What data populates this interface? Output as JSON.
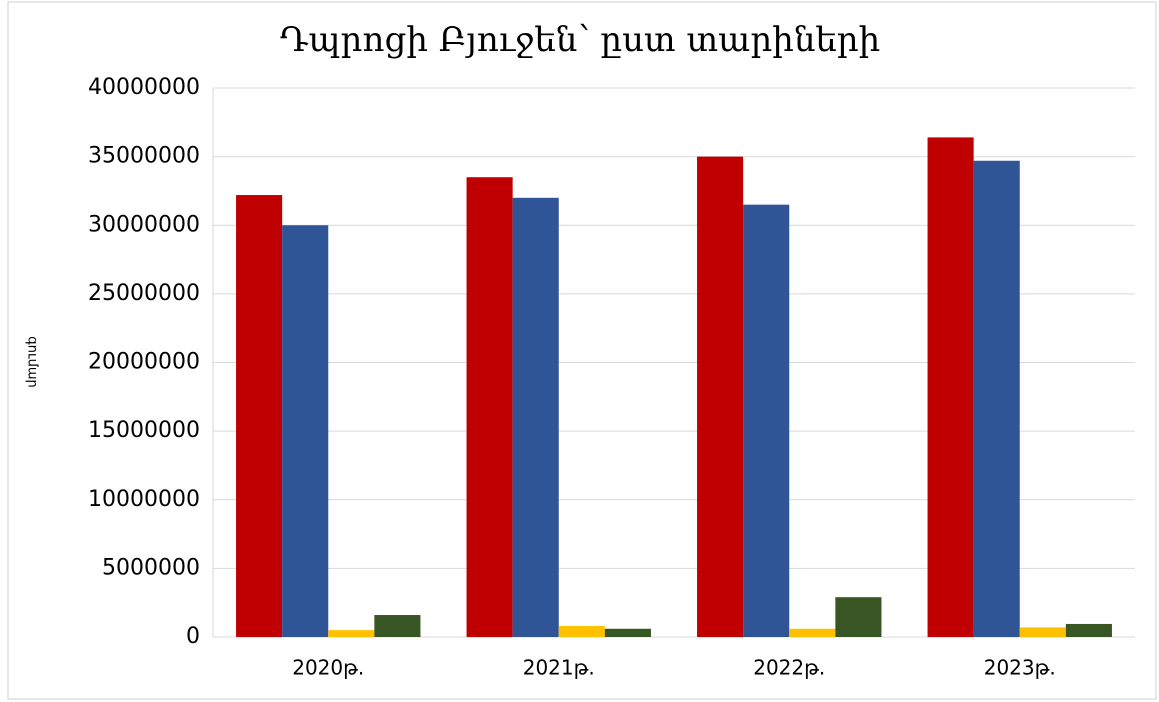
{
  "chart_data": {
    "type": "bar",
    "title": "Դպրոցի Բյուջեն՝ ըստ տարիների",
    "y_label": "գումար",
    "categories": [
      "2020թ.",
      "2021թ.",
      "2022թ.",
      "2023թ."
    ],
    "series": [
      {
        "color": "#c00000",
        "values": [
          32200000,
          33500000,
          35000000,
          36400000
        ]
      },
      {
        "color": "#2f5597",
        "values": [
          30000000,
          32000000,
          31500000,
          34700000
        ]
      },
      {
        "color": "#ffc000",
        "values": [
          500000,
          800000,
          600000,
          700000
        ]
      },
      {
        "color": "#375623",
        "values": [
          1600000,
          600000,
          2900000,
          950000
        ]
      }
    ],
    "ylim": [
      0,
      40000000
    ],
    "yticks": [
      0,
      5000000,
      10000000,
      15000000,
      20000000,
      25000000,
      30000000,
      35000000,
      40000000
    ],
    "grid": true
  }
}
